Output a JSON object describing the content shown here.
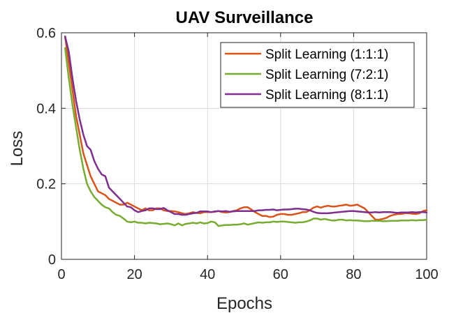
{
  "chart_data": {
    "type": "line",
    "title": "UAV Surveillance",
    "xlabel": "Epochs",
    "ylabel": "Loss",
    "xlim": [
      0,
      100
    ],
    "ylim": [
      0,
      0.6
    ],
    "xticks": [
      0,
      20,
      40,
      60,
      80,
      100
    ],
    "yticks": [
      0,
      0.2,
      0.4,
      0.6
    ],
    "xtick_labels": [
      "0",
      "20",
      "40",
      "60",
      "80",
      "100"
    ],
    "ytick_labels": [
      "0",
      "0.2",
      "0.4",
      "0.6"
    ],
    "grid": true,
    "legend_position": "top-right",
    "series": [
      {
        "name": "Split Learning (1:1:1)",
        "color": "#D95319",
        "x": [
          1,
          2,
          3,
          4,
          5,
          6,
          7,
          8,
          9,
          10,
          11,
          12,
          13,
          14,
          15,
          16,
          17,
          18,
          19,
          20,
          21,
          22,
          23,
          24,
          25,
          26,
          27,
          28,
          29,
          30,
          31,
          32,
          33,
          34,
          35,
          36,
          37,
          38,
          39,
          40,
          41,
          42,
          43,
          44,
          45,
          46,
          47,
          48,
          49,
          50,
          51,
          52,
          53,
          54,
          55,
          56,
          57,
          58,
          59,
          60,
          61,
          62,
          63,
          64,
          65,
          66,
          67,
          68,
          69,
          70,
          71,
          72,
          73,
          74,
          75,
          76,
          77,
          78,
          79,
          80,
          81,
          82,
          83,
          84,
          85,
          86,
          87,
          88,
          89,
          90,
          91,
          92,
          93,
          94,
          95,
          96,
          97,
          98,
          99,
          100
        ],
        "values": [
          0.59,
          0.52,
          0.45,
          0.38,
          0.33,
          0.28,
          0.25,
          0.22,
          0.2,
          0.18,
          0.175,
          0.17,
          0.16,
          0.155,
          0.15,
          0.145,
          0.145,
          0.15,
          0.145,
          0.14,
          0.135,
          0.13,
          0.135,
          0.13,
          0.13,
          0.135,
          0.135,
          0.13,
          0.128,
          0.128,
          0.127,
          0.125,
          0.122,
          0.12,
          0.122,
          0.125,
          0.123,
          0.122,
          0.125,
          0.125,
          0.125,
          0.126,
          0.128,
          0.125,
          0.124,
          0.125,
          0.128,
          0.13,
          0.135,
          0.138,
          0.138,
          0.132,
          0.125,
          0.12,
          0.115,
          0.115,
          0.112,
          0.113,
          0.118,
          0.12,
          0.12,
          0.118,
          0.118,
          0.12,
          0.122,
          0.125,
          0.125,
          0.13,
          0.137,
          0.14,
          0.137,
          0.14,
          0.142,
          0.14,
          0.14,
          0.142,
          0.143,
          0.145,
          0.142,
          0.143,
          0.145,
          0.14,
          0.135,
          0.125,
          0.115,
          0.105,
          0.105,
          0.107,
          0.11,
          0.115,
          0.118,
          0.12,
          0.12,
          0.122,
          0.122,
          0.121,
          0.12,
          0.122,
          0.128,
          0.13
        ]
      },
      {
        "name": "Split Learning (7:2:1)",
        "color": "#77AC30",
        "x": [
          1,
          2,
          3,
          4,
          5,
          6,
          7,
          8,
          9,
          10,
          11,
          12,
          13,
          14,
          15,
          16,
          17,
          18,
          19,
          20,
          21,
          22,
          23,
          24,
          25,
          26,
          27,
          28,
          29,
          30,
          31,
          32,
          33,
          34,
          35,
          36,
          37,
          38,
          39,
          40,
          41,
          42,
          43,
          44,
          45,
          46,
          47,
          48,
          49,
          50,
          51,
          52,
          53,
          54,
          55,
          56,
          57,
          58,
          59,
          60,
          61,
          62,
          63,
          64,
          65,
          66,
          67,
          68,
          69,
          70,
          71,
          72,
          73,
          74,
          75,
          76,
          77,
          78,
          79,
          80,
          81,
          82,
          83,
          84,
          85,
          86,
          87,
          88,
          89,
          90,
          91,
          92,
          93,
          94,
          95,
          96,
          97,
          98,
          99,
          100
        ],
        "values": [
          0.56,
          0.48,
          0.41,
          0.35,
          0.29,
          0.24,
          0.2,
          0.18,
          0.165,
          0.155,
          0.145,
          0.138,
          0.135,
          0.125,
          0.118,
          0.115,
          0.108,
          0.1,
          0.098,
          0.1,
          0.097,
          0.097,
          0.095,
          0.097,
          0.096,
          0.095,
          0.093,
          0.094,
          0.095,
          0.093,
          0.09,
          0.095,
          0.09,
          0.094,
          0.095,
          0.097,
          0.095,
          0.098,
          0.095,
          0.096,
          0.1,
          0.098,
          0.088,
          0.09,
          0.091,
          0.091,
          0.092,
          0.092,
          0.093,
          0.095,
          0.092,
          0.094,
          0.096,
          0.098,
          0.097,
          0.098,
          0.098,
          0.1,
          0.099,
          0.1,
          0.1,
          0.099,
          0.098,
          0.097,
          0.098,
          0.098,
          0.1,
          0.103,
          0.108,
          0.108,
          0.105,
          0.107,
          0.105,
          0.103,
          0.103,
          0.105,
          0.105,
          0.103,
          0.104,
          0.103,
          0.103,
          0.102,
          0.101,
          0.101,
          0.102,
          0.102,
          0.102,
          0.101,
          0.101,
          0.102,
          0.102,
          0.102,
          0.103,
          0.103,
          0.103,
          0.104,
          0.103,
          0.104,
          0.104,
          0.105
        ]
      },
      {
        "name": "Split Learning (8:1:1)",
        "color": "#7E2F8E",
        "x": [
          1,
          2,
          3,
          4,
          5,
          6,
          7,
          8,
          9,
          10,
          11,
          12,
          13,
          14,
          15,
          16,
          17,
          18,
          19,
          20,
          21,
          22,
          23,
          24,
          25,
          26,
          27,
          28,
          29,
          30,
          31,
          32,
          33,
          34,
          35,
          36,
          37,
          38,
          39,
          40,
          41,
          42,
          43,
          44,
          45,
          46,
          47,
          48,
          49,
          50,
          51,
          52,
          53,
          54,
          55,
          56,
          57,
          58,
          59,
          60,
          61,
          62,
          63,
          64,
          65,
          66,
          67,
          68,
          69,
          70,
          71,
          72,
          73,
          74,
          75,
          76,
          77,
          78,
          79,
          80,
          81,
          82,
          83,
          84,
          85,
          86,
          87,
          88,
          89,
          90,
          91,
          92,
          93,
          94,
          95,
          96,
          97,
          98,
          99,
          100
        ],
        "values": [
          0.59,
          0.55,
          0.48,
          0.42,
          0.37,
          0.33,
          0.3,
          0.29,
          0.26,
          0.24,
          0.225,
          0.22,
          0.19,
          0.18,
          0.17,
          0.16,
          0.15,
          0.14,
          0.138,
          0.13,
          0.125,
          0.128,
          0.13,
          0.135,
          0.135,
          0.133,
          0.133,
          0.136,
          0.13,
          0.125,
          0.12,
          0.12,
          0.118,
          0.118,
          0.12,
          0.122,
          0.123,
          0.127,
          0.127,
          0.127,
          0.125,
          0.127,
          0.128,
          0.127,
          0.128,
          0.126,
          0.127,
          0.128,
          0.128,
          0.128,
          0.128,
          0.128,
          0.128,
          0.13,
          0.13,
          0.131,
          0.131,
          0.132,
          0.13,
          0.131,
          0.132,
          0.132,
          0.133,
          0.134,
          0.134,
          0.133,
          0.132,
          0.13,
          0.126,
          0.123,
          0.122,
          0.122,
          0.122,
          0.123,
          0.124,
          0.125,
          0.126,
          0.127,
          0.128,
          0.128,
          0.127,
          0.126,
          0.125,
          0.124,
          0.124,
          0.125,
          0.124,
          0.125,
          0.125,
          0.125,
          0.124,
          0.123,
          0.124,
          0.124,
          0.124,
          0.125,
          0.124,
          0.125,
          0.125,
          0.124
        ]
      }
    ]
  }
}
